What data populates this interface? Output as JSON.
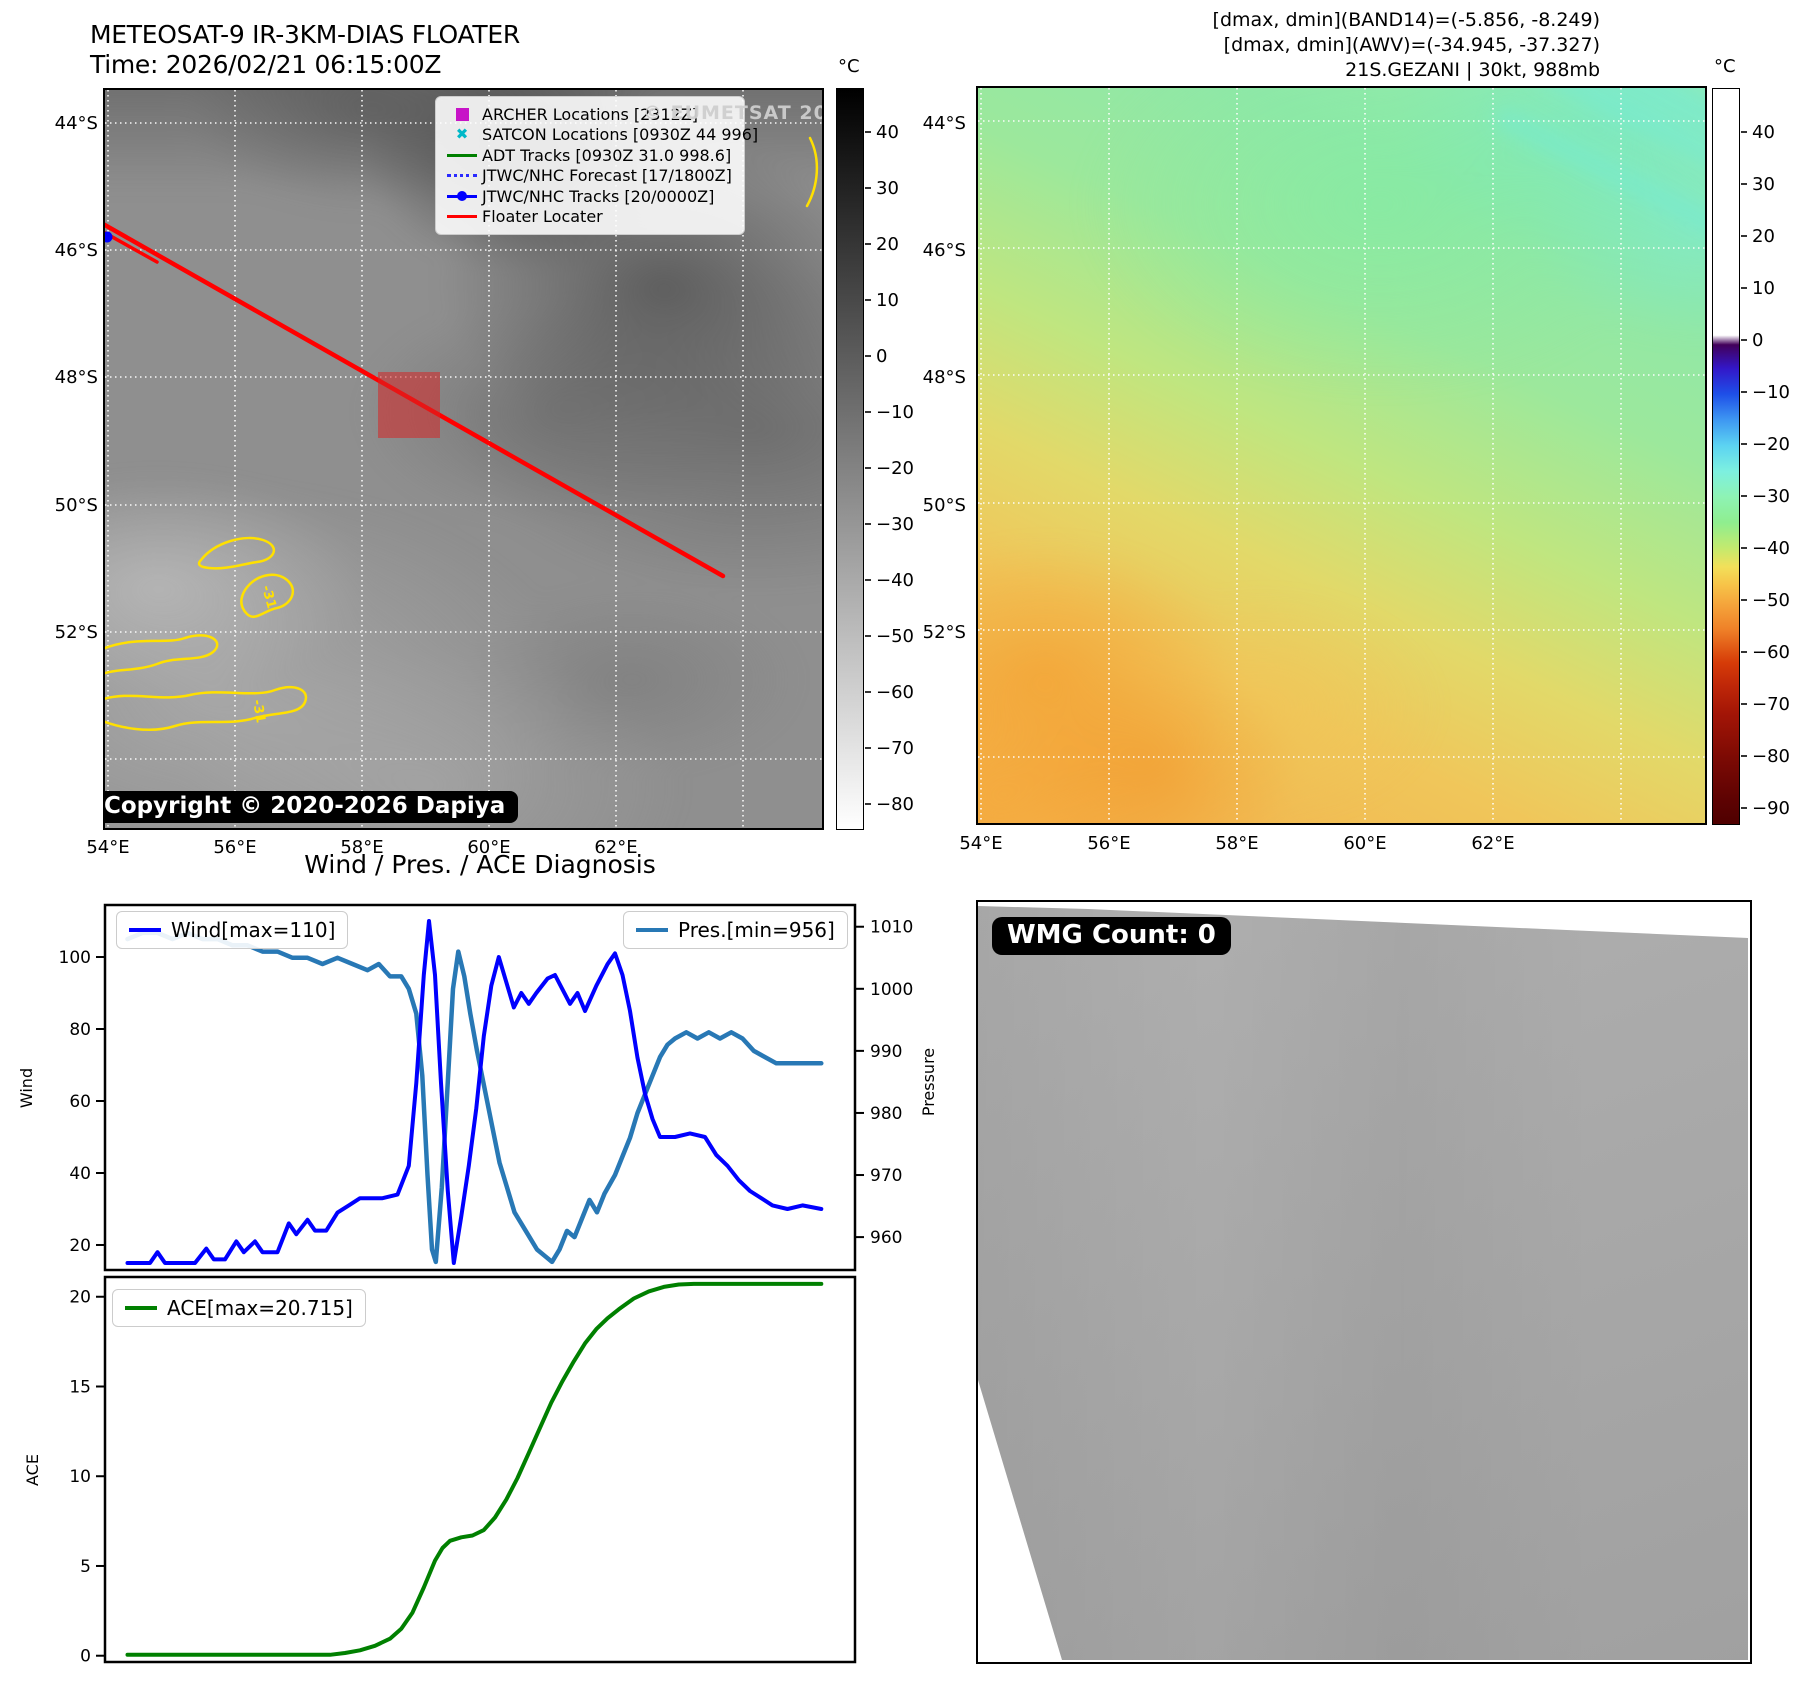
{
  "left_map": {
    "title": "METEOSAT-9 IR-3KM-DIAS FLOATER",
    "time": "Time: 2026/02/21 06:15:00Z",
    "watermark": "© EUMETSAT 2026",
    "copyright": "Copyright © 2020-2026 Dapiya",
    "legend": [
      {
        "label": "ARCHER Locations [2312Z]",
        "marker": "square",
        "color": "#c713c7"
      },
      {
        "label": "SATCON Locations [0930Z 44 996]",
        "marker": "x",
        "color": "#00b8c8"
      },
      {
        "label": "ADT Tracks [0930Z 31.0 998.6]",
        "marker": "line",
        "color": "#008000"
      },
      {
        "label": "JTWC/NHC Forecast [17/1800Z]",
        "marker": "dotted",
        "color": "#2a2aff"
      },
      {
        "label": "JTWC/NHC Tracks [20/0000Z]",
        "marker": "line-dot",
        "color": "#0000ff"
      },
      {
        "label": "Floater Locater",
        "marker": "line",
        "color": "#ff0000"
      }
    ],
    "lat_ticks": [
      "44°S",
      "46°S",
      "48°S",
      "50°S",
      "52°S"
    ],
    "lon_ticks": [
      "54°E",
      "56°E",
      "58°E",
      "60°E",
      "62°E"
    ],
    "colorbar": {
      "unit": "°C",
      "ticks": [
        40,
        30,
        20,
        10,
        0,
        -10,
        -20,
        -30,
        -40,
        -50,
        -60,
        -70,
        -80
      ]
    },
    "contour_labels": [
      "-31",
      "-31"
    ]
  },
  "right_map": {
    "annotations": [
      "[dmax, dmin](BAND14)=(-5.856, -8.249)",
      "[dmax, dmin](AWV)=(-34.945, -37.327)",
      "21S.GEZANI | 30kt, 988mb"
    ],
    "lat_ticks": [
      "44°S",
      "46°S",
      "48°S",
      "50°S",
      "52°S"
    ],
    "lon_ticks": [
      "54°E",
      "56°E",
      "58°E",
      "60°E",
      "62°E"
    ],
    "colorbar": {
      "unit": "°C",
      "ticks": [
        40,
        30,
        20,
        10,
        0,
        -10,
        -20,
        -30,
        -40,
        -50,
        -60,
        -70,
        -80,
        -90
      ]
    }
  },
  "bottom": {
    "title": "Wind / Pres. / ACE Diagnosis"
  },
  "wmg": {
    "label": "WMG Count: 0"
  },
  "chart_data": [
    {
      "type": "line",
      "title": "Wind / Pres. / ACE Diagnosis",
      "ylabel_left": "Wind",
      "ylabel_right": "Pressure",
      "ylim_left": [
        13.05,
        114.45
      ],
      "ylim_right": [
        954.7,
        1013.5
      ],
      "yticks_left": [
        100,
        80,
        60,
        40,
        20
      ],
      "yticks_right": [
        1010,
        1000,
        990,
        980,
        970,
        960
      ],
      "grid": false,
      "series": [
        {
          "name": "Wind[max=110]",
          "color": "#0000ff",
          "axis": "left",
          "legend_pos": "upper-left",
          "points": [
            [
              3,
              15
            ],
            [
              6,
              15
            ],
            [
              7,
              18
            ],
            [
              8,
              15
            ],
            [
              12,
              15
            ],
            [
              13.5,
              19
            ],
            [
              14.5,
              16
            ],
            [
              16,
              16
            ],
            [
              17.5,
              21
            ],
            [
              18.5,
              18
            ],
            [
              20,
              21
            ],
            [
              21,
              18
            ],
            [
              23,
              18
            ],
            [
              24.5,
              26
            ],
            [
              25.5,
              23
            ],
            [
              27,
              27
            ],
            [
              28,
              24
            ],
            [
              29.5,
              24
            ],
            [
              31,
              29
            ],
            [
              32.5,
              31
            ],
            [
              34,
              33
            ],
            [
              37,
              33
            ],
            [
              39,
              34
            ],
            [
              40.5,
              42
            ],
            [
              41.5,
              65
            ],
            [
              42.5,
              95
            ],
            [
              43.2,
              110
            ],
            [
              44,
              95
            ],
            [
              44.8,
              65
            ],
            [
              45.7,
              35
            ],
            [
              46.5,
              15
            ],
            [
              47.5,
              28
            ],
            [
              48.5,
              42
            ],
            [
              49.5,
              58
            ],
            [
              50.5,
              78
            ],
            [
              51.5,
              92
            ],
            [
              52.5,
              100
            ],
            [
              53.5,
              93
            ],
            [
              54.5,
              86
            ],
            [
              55.5,
              90
            ],
            [
              56.5,
              87
            ],
            [
              57.5,
              90
            ],
            [
              59,
              94
            ],
            [
              60,
              95
            ],
            [
              61,
              91
            ],
            [
              62,
              87
            ],
            [
              63,
              90
            ],
            [
              64,
              85
            ],
            [
              65.5,
              92
            ],
            [
              67,
              98
            ],
            [
              68,
              101
            ],
            [
              69,
              95
            ],
            [
              70,
              85
            ],
            [
              71,
              72
            ],
            [
              72,
              62
            ],
            [
              73,
              55
            ],
            [
              74,
              50
            ],
            [
              76,
              50
            ],
            [
              78,
              51
            ],
            [
              80,
              50
            ],
            [
              81.5,
              45
            ],
            [
              83,
              42
            ],
            [
              84.5,
              38
            ],
            [
              86,
              35
            ],
            [
              87.5,
              33
            ],
            [
              89,
              31
            ],
            [
              91,
              30
            ],
            [
              93,
              31
            ],
            [
              95.5,
              30
            ]
          ]
        },
        {
          "name": "Pres.[min=956]",
          "color": "#2878b5",
          "axis": "right",
          "legend_pos": "upper-right",
          "points": [
            [
              3,
              1008
            ],
            [
              5,
              1009
            ],
            [
              7,
              1009
            ],
            [
              9,
              1008
            ],
            [
              11,
              1009
            ],
            [
              13,
              1008
            ],
            [
              15,
              1008
            ],
            [
              17,
              1007
            ],
            [
              19,
              1007
            ],
            [
              21,
              1006
            ],
            [
              23,
              1006
            ],
            [
              25,
              1005
            ],
            [
              27,
              1005
            ],
            [
              29,
              1004
            ],
            [
              31,
              1005
            ],
            [
              33,
              1004
            ],
            [
              35,
              1003
            ],
            [
              36.5,
              1004
            ],
            [
              38,
              1002
            ],
            [
              39.5,
              1002
            ],
            [
              40.5,
              1000
            ],
            [
              41.5,
              996
            ],
            [
              42.3,
              986
            ],
            [
              43,
              970
            ],
            [
              43.6,
              958
            ],
            [
              44.1,
              956
            ],
            [
              44.9,
              968
            ],
            [
              45.7,
              985
            ],
            [
              46.4,
              1000
            ],
            [
              47.1,
              1006
            ],
            [
              47.9,
              1002
            ],
            [
              48.7,
              996
            ],
            [
              49.6,
              990
            ],
            [
              50.6,
              984
            ],
            [
              51.6,
              978
            ],
            [
              52.6,
              972
            ],
            [
              53.6,
              968
            ],
            [
              54.6,
              964
            ],
            [
              55.6,
              962
            ],
            [
              56.6,
              960
            ],
            [
              57.6,
              958
            ],
            [
              58.6,
              957
            ],
            [
              59.6,
              956
            ],
            [
              60.6,
              958
            ],
            [
              61.6,
              961
            ],
            [
              62.6,
              960
            ],
            [
              63.6,
              963
            ],
            [
              64.6,
              966
            ],
            [
              65.6,
              964
            ],
            [
              66.6,
              967
            ],
            [
              68,
              970
            ],
            [
              69,
              973
            ],
            [
              70,
              976
            ],
            [
              71,
              980
            ],
            [
              72,
              983
            ],
            [
              73,
              986
            ],
            [
              74,
              989
            ],
            [
              75,
              991
            ],
            [
              76,
              992
            ],
            [
              77.5,
              993
            ],
            [
              79,
              992
            ],
            [
              80.5,
              993
            ],
            [
              82,
              992
            ],
            [
              83.5,
              993
            ],
            [
              85,
              992
            ],
            [
              86.5,
              990
            ],
            [
              88,
              989
            ],
            [
              89.5,
              988
            ],
            [
              91,
              988
            ],
            [
              93,
              988
            ],
            [
              95.5,
              988
            ]
          ]
        }
      ]
    },
    {
      "type": "line",
      "ylabel": "ACE",
      "ylim": [
        -0.35,
        21.1
      ],
      "yticks": [
        20,
        15,
        10,
        5,
        0
      ],
      "grid": false,
      "series": [
        {
          "name": "ACE[max=20.715]",
          "color": "#008000",
          "legend_pos": "upper-left",
          "points": [
            [
              3,
              0.05
            ],
            [
              8,
              0.05
            ],
            [
              13,
              0.05
            ],
            [
              18,
              0.05
            ],
            [
              23,
              0.05
            ],
            [
              27,
              0.05
            ],
            [
              30,
              0.05
            ],
            [
              32,
              0.15
            ],
            [
              34,
              0.3
            ],
            [
              36,
              0.55
            ],
            [
              38,
              0.95
            ],
            [
              39.5,
              1.5
            ],
            [
              41,
              2.4
            ],
            [
              42.5,
              3.8
            ],
            [
              44,
              5.3
            ],
            [
              45,
              6.0
            ],
            [
              46,
              6.4
            ],
            [
              47.5,
              6.6
            ],
            [
              49,
              6.7
            ],
            [
              50.5,
              7.0
            ],
            [
              52,
              7.7
            ],
            [
              53.5,
              8.7
            ],
            [
              55,
              9.9
            ],
            [
              56.5,
              11.3
            ],
            [
              58,
              12.7
            ],
            [
              59.5,
              14.1
            ],
            [
              61,
              15.3
            ],
            [
              62.5,
              16.4
            ],
            [
              64,
              17.4
            ],
            [
              65.5,
              18.2
            ],
            [
              67,
              18.8
            ],
            [
              68.5,
              19.3
            ],
            [
              70.5,
              19.9
            ],
            [
              72.5,
              20.3
            ],
            [
              74.5,
              20.55
            ],
            [
              76.5,
              20.68
            ],
            [
              78.5,
              20.715
            ],
            [
              81,
              20.715
            ],
            [
              85,
              20.715
            ],
            [
              90,
              20.715
            ],
            [
              95.5,
              20.715
            ]
          ]
        }
      ]
    }
  ]
}
